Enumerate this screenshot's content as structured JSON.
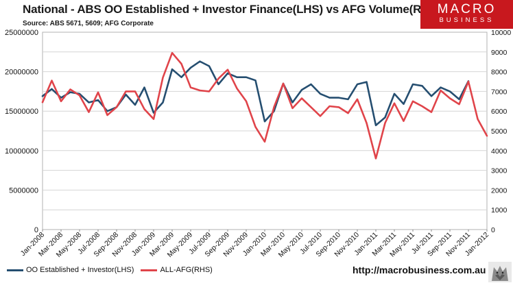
{
  "header": {
    "title": "National - ABS OO Established + Investor Finance(LHS) vs AFG Volume(RHS)",
    "source": "Source: ABS 5671, 5609; AFG Corporate"
  },
  "logo": {
    "line1": "MACRO",
    "line2": "BUSINESS",
    "color": "#c8181e"
  },
  "footer": {
    "url": "http://macrobusiness.com.au"
  },
  "colors": {
    "lhs": "#254e70",
    "rhs": "#e0444a",
    "grid": "#d4d4d4"
  },
  "chart_data": {
    "type": "line",
    "title": "National - ABS OO Established + Investor Finance(LHS) vs AFG Volume(RHS)",
    "x_tick_labels": [
      "Jan-2008",
      "Mar-2008",
      "May-2008",
      "Jul-2008",
      "Sep-2008",
      "Nov-2008",
      "Jan-2009",
      "Mar-2009",
      "May-2009",
      "Jul-2009",
      "Sep-2009",
      "Nov-2009",
      "Jan-2010",
      "Mar-2010",
      "May-2010",
      "Jul-2010",
      "Sep-2010",
      "Nov-2010",
      "Jan-2011",
      "Mar-2011",
      "May-2011",
      "Jul-2011",
      "Sep-2011",
      "Nov-2011",
      "Jan-2012"
    ],
    "y_left": {
      "min": 0,
      "max": 25000000,
      "ticks": [
        "0",
        "5000000",
        "10000000",
        "15000000",
        "20000000",
        "25000000"
      ]
    },
    "y_right": {
      "min": 0,
      "max": 10000,
      "ticks": [
        "0",
        "1000",
        "2000",
        "3000",
        "4000",
        "5000",
        "6000",
        "7000",
        "8000",
        "9000",
        "10000"
      ]
    },
    "grid": true,
    "legend_position": "bottom-left",
    "series": [
      {
        "name": "OO Established + Investor(LHS)",
        "axis": "left",
        "color": "#254e70",
        "start_month": "Jan-2008",
        "values": [
          16900000,
          17800000,
          16700000,
          17400000,
          17200000,
          16100000,
          16400000,
          15000000,
          15500000,
          17100000,
          15800000,
          18000000,
          14800000,
          16100000,
          20300000,
          19300000,
          20500000,
          21300000,
          20700000,
          18400000,
          19800000,
          19300000,
          19300000,
          18900000,
          13700000,
          15000000,
          18500000,
          16100000,
          17700000,
          18400000,
          17200000,
          16700000,
          16700000,
          16500000,
          18400000,
          18700000,
          13200000,
          14200000,
          17200000,
          15900000,
          18400000,
          18200000,
          16900000,
          18000000,
          17500000,
          16500000,
          18800000
        ]
      },
      {
        "name": "ALL-AFG(RHS)",
        "axis": "right",
        "color": "#e0444a",
        "start_month": "Jan-2008",
        "values": [
          6450,
          7550,
          6500,
          7100,
          6800,
          5950,
          6950,
          5800,
          6200,
          7000,
          7000,
          6100,
          5600,
          7700,
          8950,
          8400,
          7200,
          7050,
          7000,
          7650,
          8100,
          7150,
          6500,
          5200,
          4450,
          6200,
          7400,
          6150,
          6650,
          6200,
          5750,
          6250,
          6200,
          5900,
          6600,
          5400,
          3600,
          5400,
          6400,
          5500,
          6500,
          6250,
          5950,
          7050,
          6650,
          6350,
          7500,
          5600,
          4750
        ]
      }
    ]
  }
}
